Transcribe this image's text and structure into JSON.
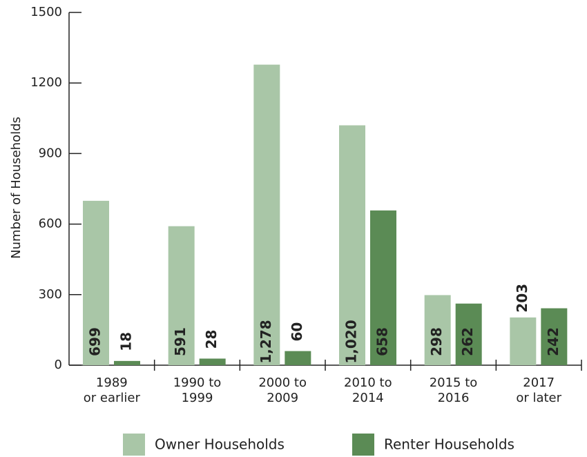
{
  "chart_data": {
    "type": "bar",
    "y_label": "Number of Households",
    "categories": [
      [
        "1989",
        "or earlier"
      ],
      [
        "1990 to",
        "1999"
      ],
      [
        "2000 to",
        "2009"
      ],
      [
        "2010 to",
        "2014"
      ],
      [
        "2015 to",
        "2016"
      ],
      [
        "2017",
        "or later"
      ]
    ],
    "series": [
      {
        "name": "Owner Households",
        "color": "#a9c6a7",
        "values": [
          699,
          591,
          1278,
          1020,
          298,
          203
        ],
        "value_labels": [
          "699",
          "591",
          "1,278",
          "1,020",
          "298",
          "203"
        ]
      },
      {
        "name": "Renter Households",
        "color": "#5b8b55",
        "values": [
          18,
          28,
          60,
          658,
          262,
          242
        ],
        "value_labels": [
          "18",
          "28",
          "60",
          "658",
          "262",
          "242"
        ]
      }
    ],
    "ylim": [
      0,
      1500
    ],
    "yticks": [
      0,
      300,
      600,
      900,
      1200,
      1500
    ]
  }
}
